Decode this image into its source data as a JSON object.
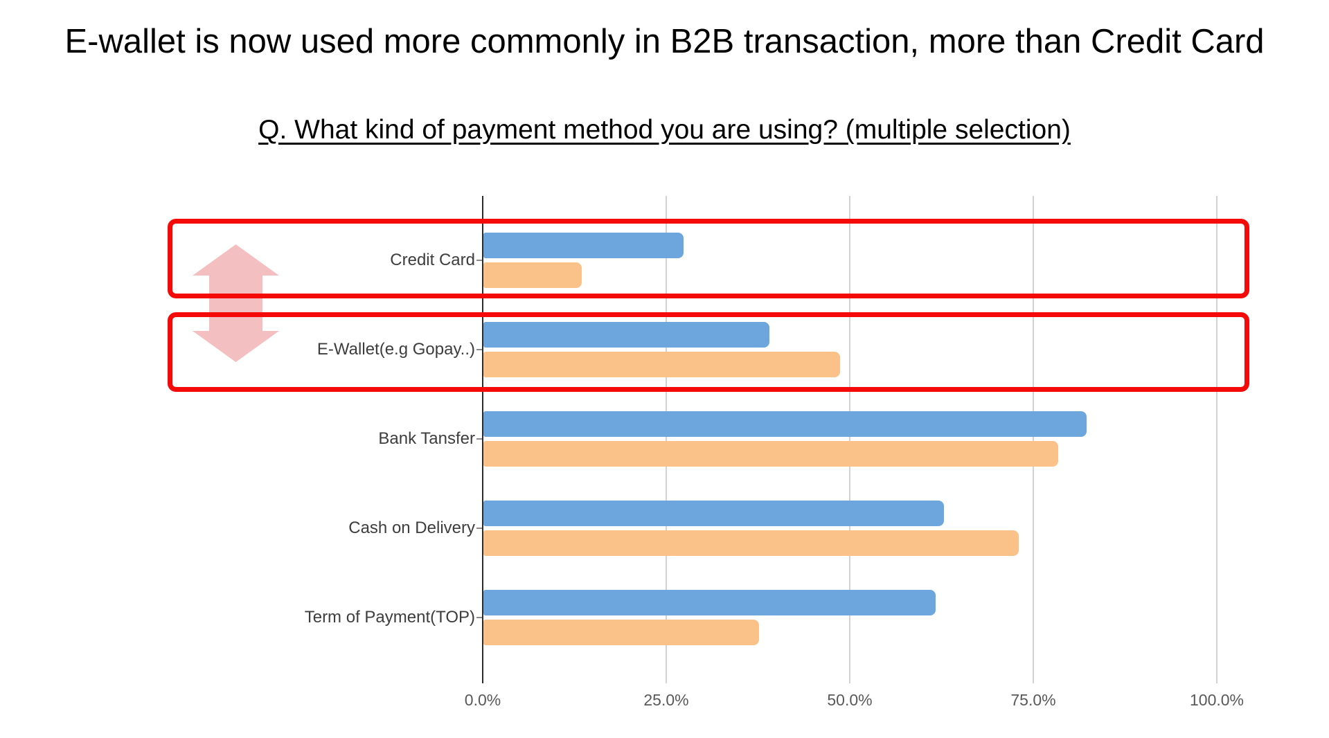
{
  "slide": {
    "title": "E-wallet is now used more commonly in B2B transaction, more than Credit Card",
    "question": "Q. What kind of payment method you are using? (multiple selection)"
  },
  "chart_data": {
    "type": "bar",
    "orientation": "horizontal",
    "title": "",
    "categories": [
      "Credit Card",
      "E-Wallet(e.g Gopay..)",
      "Bank Tansfer",
      "Cash on Delivery",
      "Term of Payment(TOP)"
    ],
    "series": [
      {
        "name": "series_blue",
        "color": "#6CA6DD",
        "values": [
          27.3,
          39.0,
          82.2,
          62.7,
          61.6
        ]
      },
      {
        "name": "series_orange",
        "color": "#FAC289",
        "values": [
          13.4,
          48.6,
          78.3,
          72.9,
          37.5
        ]
      }
    ],
    "x_ticks": [
      "0.0%",
      "25.0%",
      "50.0%",
      "75.0%",
      "100.0%"
    ],
    "xlim": [
      0,
      100
    ],
    "unit": "%",
    "grid": true,
    "legend": false
  },
  "annotations": {
    "highlighted_categories": [
      "Credit Card",
      "E-Wallet(e.g Gopay..)"
    ],
    "highlight_box_color": "#F50A0A",
    "swap_arrow_icon": "up-down-arrow-icon",
    "swap_arrow_color": "#F4BFC1"
  }
}
